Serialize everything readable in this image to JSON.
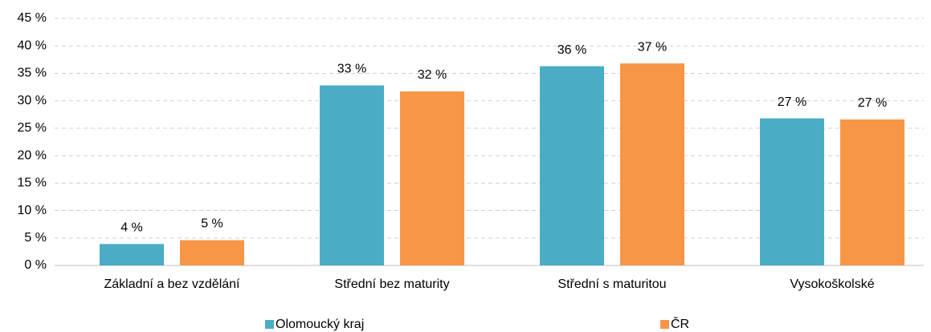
{
  "chart_data": {
    "type": "bar",
    "categories": [
      "Základní a bez vzdělání",
      "Střední bez maturity",
      "Střední s maturitou",
      "Vysokoškolské"
    ],
    "series": [
      {
        "name": "Olomoucký kraj",
        "color": "#4bacc6",
        "values": [
          3.9,
          32.8,
          36.3,
          26.8
        ],
        "value_labels": [
          "4 %",
          "33 %",
          "36 %",
          "27 %"
        ]
      },
      {
        "name": "ČR",
        "color": "#f79646",
        "values": [
          4.6,
          31.7,
          36.8,
          26.6
        ],
        "value_labels": [
          "5 %",
          "32 %",
          "37 %",
          "27 %"
        ]
      }
    ],
    "ylim": [
      0,
      45
    ],
    "yticks": [
      {
        "value": 0,
        "label": "0 %"
      },
      {
        "value": 5,
        "label": "5 %"
      },
      {
        "value": 10,
        "label": "10 %"
      },
      {
        "value": 15,
        "label": "15 %"
      },
      {
        "value": 20,
        "label": "20 %"
      },
      {
        "value": 25,
        "label": "25 %"
      },
      {
        "value": 30,
        "label": "30 %"
      },
      {
        "value": 35,
        "label": "35 %"
      },
      {
        "value": 40,
        "label": "40 %"
      },
      {
        "value": 45,
        "label": "45 %"
      }
    ],
    "grid": true,
    "legend": "bottom"
  }
}
